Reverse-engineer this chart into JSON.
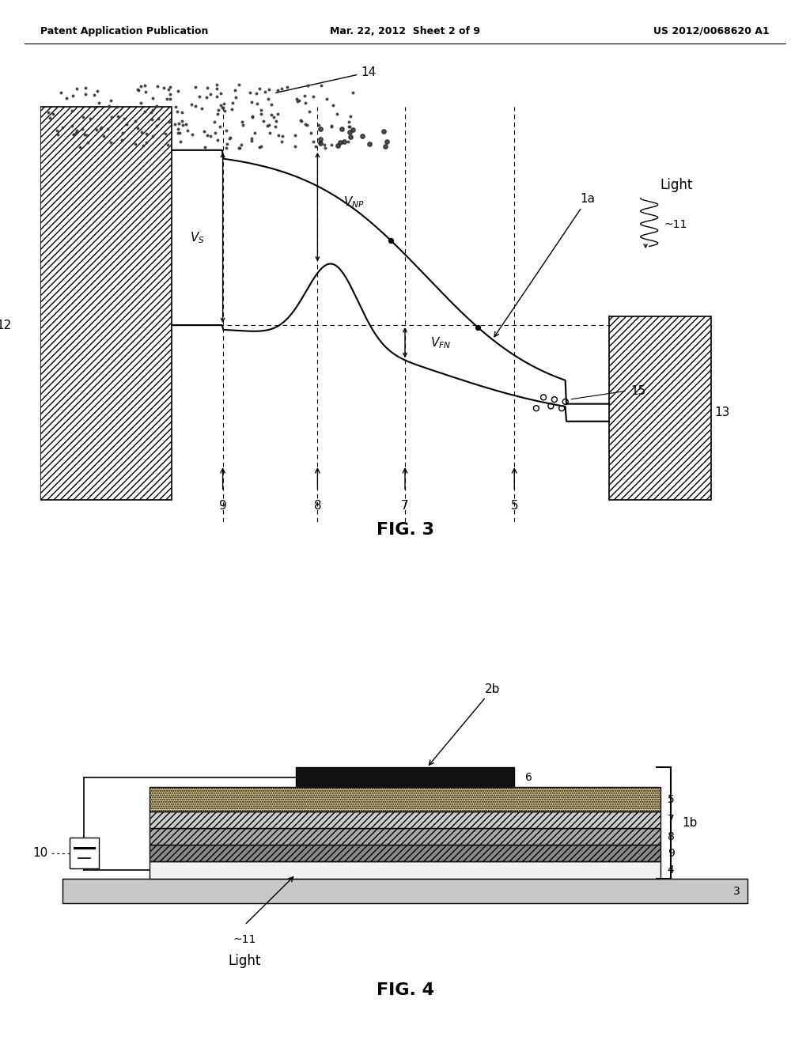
{
  "fig_width": 10.24,
  "fig_height": 13.2,
  "bg_color": "#ffffff",
  "header_left": "Patent Application Publication",
  "header_center": "Mar. 22, 2012  Sheet 2 of 9",
  "header_right": "US 2012/0068620 A1",
  "fig3_title": "FIG. 3",
  "fig4_title": "FIG. 4",
  "line_color": "#000000"
}
